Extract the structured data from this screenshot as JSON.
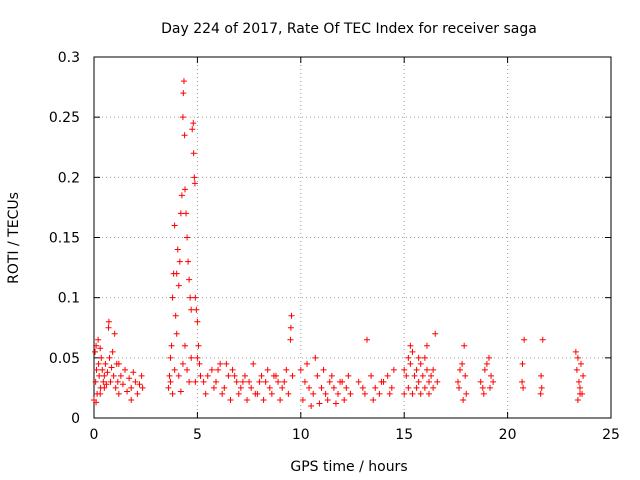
{
  "chart_data": {
    "type": "scatter",
    "title": "Day 224 of 2017, Rate Of TEC Index for receiver saga",
    "xlabel": "GPS time / hours",
    "ylabel": "ROTI / TECUs",
    "xlim": [
      0,
      25
    ],
    "ylim": [
      0,
      0.3
    ],
    "grid": true,
    "marker": "+",
    "color": "#ff0000",
    "x_ticks": [
      0,
      5,
      10,
      15,
      20,
      25
    ],
    "x_tick_labels": [
      "0",
      "5",
      "10",
      "15",
      "20",
      "25"
    ],
    "y_ticks": [
      0,
      0.05,
      0.1,
      0.15,
      0.2,
      0.25,
      0.3
    ],
    "y_tick_labels": [
      "0",
      "0.05",
      "0.1",
      "0.15",
      "0.2",
      "0.25",
      "0.3"
    ],
    "series": [
      {
        "name": "ROTI",
        "points": [
          [
            0.0,
            0.015
          ],
          [
            0.05,
            0.055
          ],
          [
            0.08,
            0.03
          ],
          [
            0.1,
            0.06
          ],
          [
            0.12,
            0.04
          ],
          [
            0.15,
            0.02
          ],
          [
            0.2,
            0.065
          ],
          [
            0.22,
            0.045
          ],
          [
            0.25,
            0.035
          ],
          [
            0.3,
            0.058
          ],
          [
            0.32,
            0.025
          ],
          [
            0.35,
            0.05
          ],
          [
            0.4,
            0.04
          ],
          [
            0.45,
            0.03
          ],
          [
            0.5,
            0.035
          ],
          [
            0.55,
            0.045
          ],
          [
            0.6,
            0.028
          ],
          [
            0.65,
            0.038
          ],
          [
            0.7,
            0.075
          ],
          [
            0.72,
            0.08
          ],
          [
            0.75,
            0.05
          ],
          [
            0.8,
            0.03
          ],
          [
            0.85,
            0.042
          ],
          [
            0.9,
            0.055
          ],
          [
            0.95,
            0.035
          ],
          [
            1.0,
            0.07
          ],
          [
            1.05,
            0.025
          ],
          [
            1.1,
            0.045
          ],
          [
            1.15,
            0.03
          ],
          [
            1.2,
            0.02
          ],
          [
            1.3,
            0.035
          ],
          [
            1.4,
            0.028
          ],
          [
            1.5,
            0.04
          ],
          [
            1.6,
            0.022
          ],
          [
            1.7,
            0.033
          ],
          [
            1.8,
            0.025
          ],
          [
            1.9,
            0.038
          ],
          [
            2.0,
            0.03
          ],
          [
            2.1,
            0.02
          ],
          [
            2.2,
            0.028
          ],
          [
            2.3,
            0.035
          ],
          [
            2.35,
            0.025
          ],
          [
            0.1,
            0.013
          ],
          [
            0.3,
            0.02
          ],
          [
            0.5,
            0.025
          ],
          [
            1.2,
            0.045
          ],
          [
            1.8,
            0.015
          ],
          [
            3.6,
            0.025
          ],
          [
            3.65,
            0.035
          ],
          [
            3.7,
            0.05
          ],
          [
            3.75,
            0.06
          ],
          [
            3.8,
            0.1
          ],
          [
            3.85,
            0.12
          ],
          [
            3.9,
            0.16
          ],
          [
            3.95,
            0.085
          ],
          [
            4.0,
            0.12
          ],
          [
            4.05,
            0.14
          ],
          [
            4.1,
            0.11
          ],
          [
            4.15,
            0.13
          ],
          [
            4.2,
            0.17
          ],
          [
            4.25,
            0.185
          ],
          [
            4.3,
            0.25
          ],
          [
            4.32,
            0.27
          ],
          [
            4.35,
            0.28
          ],
          [
            4.38,
            0.235
          ],
          [
            4.4,
            0.19
          ],
          [
            4.45,
            0.17
          ],
          [
            4.5,
            0.15
          ],
          [
            4.55,
            0.13
          ],
          [
            4.6,
            0.115
          ],
          [
            4.65,
            0.1
          ],
          [
            4.7,
            0.09
          ],
          [
            4.75,
            0.24
          ],
          [
            4.8,
            0.245
          ],
          [
            4.82,
            0.22
          ],
          [
            4.85,
            0.2
          ],
          [
            4.88,
            0.195
          ],
          [
            4.9,
            0.1
          ],
          [
            4.95,
            0.09
          ],
          [
            5.0,
            0.08
          ],
          [
            5.05,
            0.06
          ],
          [
            5.1,
            0.045
          ],
          [
            5.15,
            0.035
          ],
          [
            3.7,
            0.03
          ],
          [
            3.9,
            0.04
          ],
          [
            4.1,
            0.035
          ],
          [
            4.3,
            0.045
          ],
          [
            4.5,
            0.04
          ],
          [
            4.7,
            0.05
          ],
          [
            4.9,
            0.03
          ],
          [
            3.8,
            0.02
          ],
          [
            4.2,
            0.022
          ],
          [
            4.6,
            0.03
          ],
          [
            5.0,
            0.05
          ],
          [
            4.4,
            0.06
          ],
          [
            4.0,
            0.07
          ],
          [
            5.3,
            0.03
          ],
          [
            5.5,
            0.035
          ],
          [
            5.7,
            0.04
          ],
          [
            5.9,
            0.03
          ],
          [
            6.1,
            0.045
          ],
          [
            6.3,
            0.025
          ],
          [
            6.5,
            0.035
          ],
          [
            6.7,
            0.04
          ],
          [
            6.9,
            0.03
          ],
          [
            7.1,
            0.025
          ],
          [
            7.3,
            0.035
          ],
          [
            7.5,
            0.03
          ],
          [
            7.7,
            0.045
          ],
          [
            7.9,
            0.02
          ],
          [
            8.1,
            0.035
          ],
          [
            8.3,
            0.03
          ],
          [
            8.5,
            0.025
          ],
          [
            8.7,
            0.035
          ],
          [
            8.9,
            0.03
          ],
          [
            9.1,
            0.025
          ],
          [
            9.3,
            0.04
          ],
          [
            9.5,
            0.065
          ],
          [
            9.52,
            0.075
          ],
          [
            9.55,
            0.085
          ],
          [
            9.6,
            0.035
          ],
          [
            5.4,
            0.02
          ],
          [
            5.8,
            0.025
          ],
          [
            6.2,
            0.02
          ],
          [
            6.6,
            0.015
          ],
          [
            7.0,
            0.02
          ],
          [
            7.4,
            0.015
          ],
          [
            7.8,
            0.02
          ],
          [
            8.2,
            0.015
          ],
          [
            8.6,
            0.02
          ],
          [
            9.0,
            0.015
          ],
          [
            9.4,
            0.02
          ],
          [
            6.0,
            0.04
          ],
          [
            6.4,
            0.045
          ],
          [
            6.8,
            0.035
          ],
          [
            7.2,
            0.03
          ],
          [
            7.6,
            0.025
          ],
          [
            8.0,
            0.03
          ],
          [
            8.4,
            0.04
          ],
          [
            8.8,
            0.035
          ],
          [
            9.2,
            0.03
          ],
          [
            10.0,
            0.04
          ],
          [
            10.2,
            0.03
          ],
          [
            10.4,
            0.025
          ],
          [
            10.6,
            0.02
          ],
          [
            10.8,
            0.035
          ],
          [
            11.0,
            0.025
          ],
          [
            11.2,
            0.02
          ],
          [
            11.4,
            0.03
          ],
          [
            11.6,
            0.025
          ],
          [
            11.8,
            0.02
          ],
          [
            12.0,
            0.03
          ],
          [
            12.2,
            0.025
          ],
          [
            12.4,
            0.02
          ],
          [
            10.1,
            0.015
          ],
          [
            10.5,
            0.01
          ],
          [
            10.9,
            0.012
          ],
          [
            11.3,
            0.015
          ],
          [
            11.7,
            0.012
          ],
          [
            12.1,
            0.015
          ],
          [
            10.3,
            0.045
          ],
          [
            10.7,
            0.05
          ],
          [
            11.1,
            0.04
          ],
          [
            11.5,
            0.035
          ],
          [
            11.9,
            0.03
          ],
          [
            12.3,
            0.035
          ],
          [
            12.8,
            0.03
          ],
          [
            13.0,
            0.025
          ],
          [
            13.2,
            0.065
          ],
          [
            13.4,
            0.035
          ],
          [
            13.6,
            0.025
          ],
          [
            13.8,
            0.02
          ],
          [
            14.0,
            0.03
          ],
          [
            14.2,
            0.035
          ],
          [
            14.4,
            0.025
          ],
          [
            14.5,
            0.04
          ],
          [
            13.1,
            0.02
          ],
          [
            13.5,
            0.015
          ],
          [
            13.9,
            0.03
          ],
          [
            14.3,
            0.02
          ],
          [
            15.0,
            0.04
          ],
          [
            15.1,
            0.035
          ],
          [
            15.2,
            0.05
          ],
          [
            15.3,
            0.045
          ],
          [
            15.4,
            0.055
          ],
          [
            15.5,
            0.035
          ],
          [
            15.6,
            0.04
          ],
          [
            15.7,
            0.03
          ],
          [
            15.8,
            0.045
          ],
          [
            15.9,
            0.035
          ],
          [
            16.0,
            0.05
          ],
          [
            16.1,
            0.04
          ],
          [
            16.2,
            0.03
          ],
          [
            16.3,
            0.035
          ],
          [
            16.4,
            0.04
          ],
          [
            16.5,
            0.07
          ],
          [
            16.6,
            0.03
          ],
          [
            15.0,
            0.02
          ],
          [
            15.2,
            0.025
          ],
          [
            15.4,
            0.02
          ],
          [
            15.6,
            0.025
          ],
          [
            15.8,
            0.02
          ],
          [
            16.0,
            0.025
          ],
          [
            16.2,
            0.02
          ],
          [
            16.4,
            0.025
          ],
          [
            15.3,
            0.06
          ],
          [
            15.7,
            0.05
          ],
          [
            16.1,
            0.06
          ],
          [
            17.6,
            0.03
          ],
          [
            17.7,
            0.04
          ],
          [
            17.8,
            0.045
          ],
          [
            17.9,
            0.06
          ],
          [
            17.95,
            0.035
          ],
          [
            18.0,
            0.02
          ],
          [
            17.65,
            0.025
          ],
          [
            17.85,
            0.015
          ],
          [
            18.7,
            0.03
          ],
          [
            18.8,
            0.025
          ],
          [
            18.9,
            0.04
          ],
          [
            19.0,
            0.045
          ],
          [
            19.1,
            0.05
          ],
          [
            19.2,
            0.035
          ],
          [
            19.3,
            0.03
          ],
          [
            18.85,
            0.02
          ],
          [
            19.15,
            0.025
          ],
          [
            20.7,
            0.03
          ],
          [
            20.75,
            0.025
          ],
          [
            20.8,
            0.065
          ],
          [
            20.72,
            0.045
          ],
          [
            21.6,
            0.02
          ],
          [
            21.65,
            0.025
          ],
          [
            21.7,
            0.065
          ],
          [
            21.62,
            0.035
          ],
          [
            23.3,
            0.055
          ],
          [
            23.35,
            0.04
          ],
          [
            23.4,
            0.05
          ],
          [
            23.45,
            0.03
          ],
          [
            23.5,
            0.025
          ],
          [
            23.55,
            0.045
          ],
          [
            23.6,
            0.02
          ],
          [
            23.65,
            0.035
          ],
          [
            23.4,
            0.015
          ],
          [
            23.5,
            0.02
          ]
        ]
      }
    ]
  }
}
